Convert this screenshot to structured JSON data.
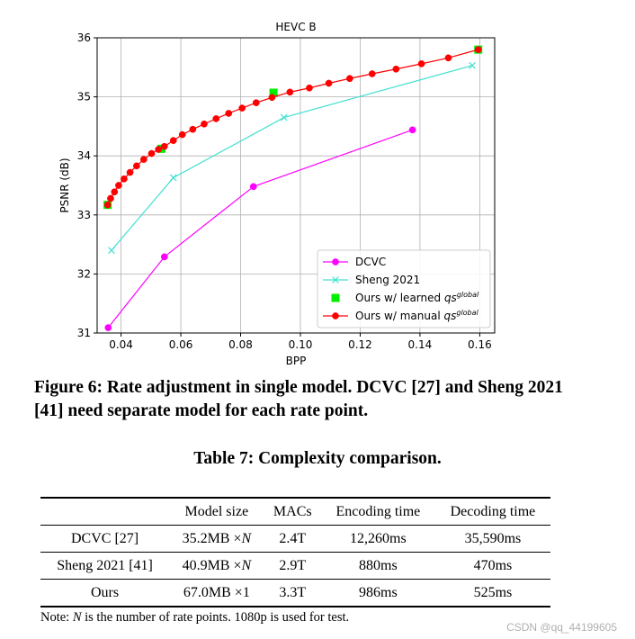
{
  "figure": {
    "caption": "Figure 6: Rate adjustment in single model. DCVC [27] and Sheng 2021 [41] need separate model for each rate point."
  },
  "chart_data": {
    "type": "line",
    "title": "HEVC B",
    "xlabel": "BPP",
    "ylabel": "PSNR (dB)",
    "xlim": [
      0.032,
      0.165
    ],
    "ylim": [
      31,
      36
    ],
    "xticks": [
      0.04,
      0.06,
      0.08,
      0.1,
      0.12,
      0.14,
      0.16
    ],
    "xtick_labels": [
      "0.04",
      "0.06",
      "0.08",
      "0.10",
      "0.12",
      "0.14",
      "0.16"
    ],
    "yticks": [
      31,
      32,
      33,
      34,
      35,
      36
    ],
    "ytick_labels": [
      "31",
      "32",
      "33",
      "34",
      "35",
      "36"
    ],
    "grid": true,
    "legend_position": "bottom-right",
    "series": [
      {
        "name": "DCVC",
        "color": "#ff00ff",
        "marker": "circle",
        "line": true,
        "x": [
          0.0357,
          0.0545,
          0.0843,
          0.1375
        ],
        "y": [
          31.09,
          32.29,
          33.48,
          34.44
        ]
      },
      {
        "name": "Sheng 2021",
        "color": "#40e0d0",
        "marker": "x",
        "line": true,
        "x": [
          0.0368,
          0.0575,
          0.0945,
          0.1575
        ],
        "y": [
          32.4,
          33.63,
          34.65,
          35.53
        ]
      },
      {
        "name": "Ours w/ learned ",
        "name_sym": "qs",
        "name_sup": "global",
        "color": "#00ee00",
        "marker": "square",
        "line": false,
        "x": [
          0.0355,
          0.0535,
          0.091,
          0.1595
        ],
        "y": [
          33.17,
          34.12,
          35.07,
          35.8
        ]
      },
      {
        "name": "Ours w/ manual ",
        "name_sym": "qs",
        "name_sup": "global",
        "color": "#ff0000",
        "marker": "circle",
        "line": true,
        "x": [
          0.0355,
          0.0365,
          0.0378,
          0.0392,
          0.041,
          0.043,
          0.0452,
          0.0476,
          0.0502,
          0.0525,
          0.0545,
          0.0575,
          0.0605,
          0.064,
          0.0678,
          0.0718,
          0.076,
          0.0805,
          0.0852,
          0.0905,
          0.0965,
          0.103,
          0.1095,
          0.1165,
          0.124,
          0.132,
          0.1405,
          0.1495,
          0.1595
        ],
        "y": [
          33.17,
          33.28,
          33.39,
          33.5,
          33.61,
          33.72,
          33.83,
          33.94,
          34.04,
          34.11,
          34.16,
          34.26,
          34.36,
          34.45,
          34.54,
          34.63,
          34.72,
          34.81,
          34.9,
          34.99,
          35.08,
          35.15,
          35.23,
          35.31,
          35.39,
          35.47,
          35.56,
          35.66,
          35.8
        ]
      }
    ]
  },
  "table": {
    "title": "Table 7: Complexity comparison.",
    "headers": [
      "",
      "Model size",
      "MACs",
      "Encoding time",
      "Decoding time"
    ],
    "rows": [
      {
        "name": "DCVC [27]",
        "model_size": "35.2MB ×",
        "model_size_var": "N",
        "macs": "2.4T",
        "encoding": "12,260ms",
        "decoding": "35,590ms"
      },
      {
        "name": "Sheng 2021 [41]",
        "model_size": "40.9MB ×",
        "model_size_var": "N",
        "macs": "2.9T",
        "encoding": "880ms",
        "decoding": "470ms"
      },
      {
        "name": "Ours",
        "model_size": "67.0MB ×1",
        "model_size_var": "",
        "macs": "3.3T",
        "encoding": "986ms",
        "decoding": "525ms"
      }
    ],
    "note_prefix": "Note: ",
    "note_var": "N",
    "note_rest": " is the number of rate points. 1080p is used for test."
  },
  "watermark": "CSDN @qq_44199605"
}
